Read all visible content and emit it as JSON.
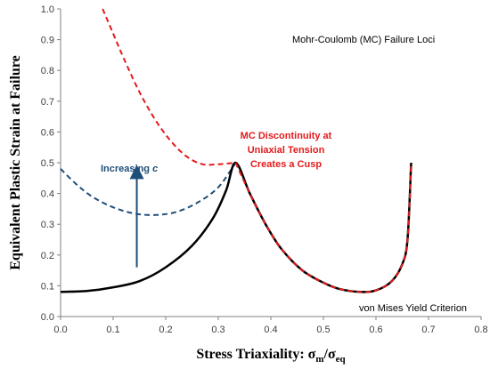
{
  "chart_data": {
    "type": "line",
    "title": "Mohr-Coulomb  (MC) Failure Loci",
    "xlabel": "Stress Triaxiality: ",
    "xlabel_sigma": "σ",
    "xlabel_sub_m": "m",
    "xlabel_slash": "/σ",
    "xlabel_sub_eq": "eq",
    "ylabel": "Equivalent Plastic Strain at Failure",
    "xlim": [
      0,
      0.8
    ],
    "ylim": [
      0,
      1.0
    ],
    "xticks": [
      "0.0",
      "0.1",
      "0.2",
      "0.3",
      "0.4",
      "0.5",
      "0.6",
      "0.7",
      "0.8"
    ],
    "yticks": [
      "0.0",
      "0.1",
      "0.2",
      "0.3",
      "0.4",
      "0.5",
      "0.6",
      "0.7",
      "0.8",
      "0.9",
      "1.0"
    ],
    "grid": false,
    "series": [
      {
        "color": "#e31a1c",
        "style": "dashed",
        "points": [
          [
            0.08,
            1.0
          ],
          [
            0.1,
            0.92
          ],
          [
            0.12,
            0.84
          ],
          [
            0.15,
            0.73
          ],
          [
            0.18,
            0.64
          ],
          [
            0.21,
            0.57
          ],
          [
            0.24,
            0.52
          ],
          [
            0.27,
            0.495
          ],
          [
            0.3,
            0.495
          ],
          [
            0.333,
            0.5
          ]
        ]
      },
      {
        "color": "#1f4e79",
        "style": "dashed",
        "points": [
          [
            0.0,
            0.48
          ],
          [
            0.03,
            0.43
          ],
          [
            0.06,
            0.39
          ],
          [
            0.1,
            0.355
          ],
          [
            0.14,
            0.335
          ],
          [
            0.18,
            0.33
          ],
          [
            0.22,
            0.34
          ],
          [
            0.26,
            0.37
          ],
          [
            0.3,
            0.42
          ],
          [
            0.333,
            0.5
          ]
        ]
      },
      {
        "color": "#000000",
        "style": "solid",
        "points": [
          [
            0.0,
            0.08
          ],
          [
            0.05,
            0.083
          ],
          [
            0.1,
            0.095
          ],
          [
            0.15,
            0.115
          ],
          [
            0.2,
            0.16
          ],
          [
            0.25,
            0.23
          ],
          [
            0.29,
            0.32
          ],
          [
            0.315,
            0.41
          ],
          [
            0.333,
            0.5
          ],
          [
            0.36,
            0.4
          ],
          [
            0.39,
            0.3
          ],
          [
            0.42,
            0.22
          ],
          [
            0.46,
            0.15
          ],
          [
            0.5,
            0.11
          ],
          [
            0.53,
            0.09
          ],
          [
            0.57,
            0.08
          ],
          [
            0.6,
            0.085
          ],
          [
            0.63,
            0.115
          ],
          [
            0.65,
            0.17
          ],
          [
            0.66,
            0.25
          ],
          [
            0.667,
            0.5
          ]
        ]
      },
      {
        "color": "#e31a1c",
        "style": "dashed",
        "points": [
          [
            0.333,
            0.5
          ],
          [
            0.36,
            0.4
          ],
          [
            0.39,
            0.3
          ],
          [
            0.42,
            0.22
          ],
          [
            0.46,
            0.15
          ],
          [
            0.5,
            0.11
          ],
          [
            0.53,
            0.09
          ],
          [
            0.57,
            0.08
          ],
          [
            0.6,
            0.085
          ],
          [
            0.63,
            0.115
          ],
          [
            0.65,
            0.17
          ],
          [
            0.66,
            0.25
          ],
          [
            0.667,
            0.5
          ]
        ]
      }
    ],
    "annotations": {
      "increasing_prefix": "Increasing ",
      "increasing_var": "c",
      "discontinuity_lines": [
        "MC Discontinuity at",
        "Uniaxial Tension",
        "Creates a Cusp"
      ],
      "vonmises": "von Mises Yield Criterion"
    },
    "arrow": {
      "x": 0.145,
      "y_from": 0.16,
      "y_to": 0.47,
      "color": "#1f4e79"
    },
    "colors": {
      "discontinuity": "#e31a1c",
      "increasing": "#1f4e79",
      "axis": "#808080"
    }
  }
}
